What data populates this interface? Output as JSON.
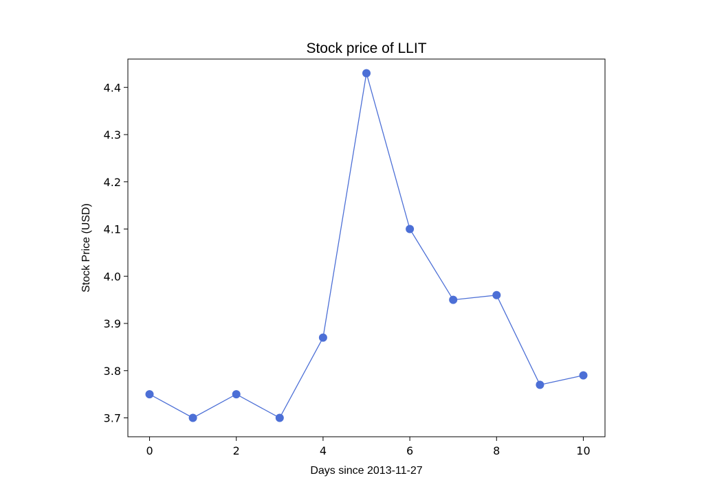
{
  "chart_data": {
    "type": "line",
    "title": "Stock price of LLIT",
    "xlabel": "Days since 2013-11-27",
    "ylabel": "Stock Price (USD)",
    "x": [
      0,
      1,
      2,
      3,
      4,
      5,
      6,
      7,
      8,
      9,
      10
    ],
    "series": [
      {
        "values": [
          3.75,
          3.7,
          3.75,
          3.7,
          3.87,
          4.43,
          4.1,
          3.95,
          3.96,
          3.77,
          3.79
        ]
      }
    ],
    "xlim": [
      -0.5,
      10.5
    ],
    "ylim": [
      3.66,
      4.46
    ],
    "xticks": [
      "0",
      "2",
      "4",
      "6",
      "8",
      "10"
    ],
    "yticks": [
      "3.7",
      "3.8",
      "3.9",
      "4.0",
      "4.1",
      "4.2",
      "4.3",
      "4.4"
    ],
    "grid": false,
    "marker": "circle",
    "color": "#4c6fd6"
  }
}
